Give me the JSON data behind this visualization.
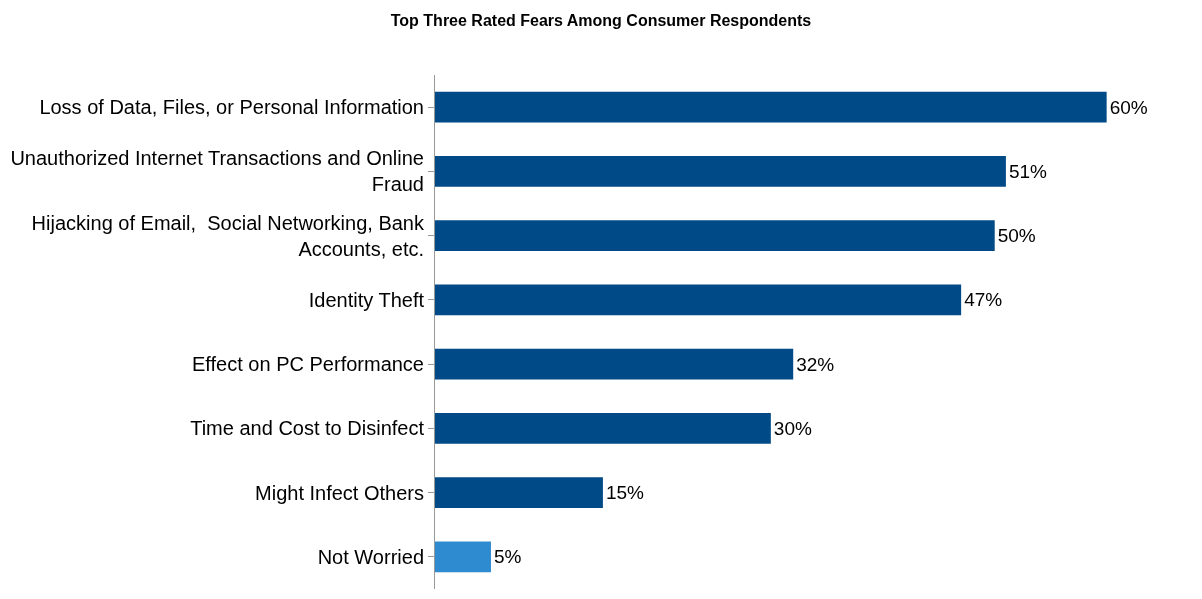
{
  "chart_data": {
    "type": "bar",
    "orientation": "horizontal",
    "title": "Top Three Rated Fears Among Consumer Respondents",
    "categories": [
      "Loss of Data, Files, or Personal Information",
      "Unauthorized Internet Transactions and Online Fraud",
      "Hijacking of Email,  Social Networking, Bank Accounts, etc.",
      "Identity Theft",
      "Effect on PC Performance",
      "Time and Cost to Disinfect",
      "Might Infect Others",
      "Not Worried"
    ],
    "values": [
      60,
      51,
      50,
      47,
      32,
      30,
      15,
      5
    ],
    "colors": [
      "#004a87",
      "#004a87",
      "#004a87",
      "#004a87",
      "#004a87",
      "#004a87",
      "#004a87",
      "#2e8bcf"
    ],
    "value_labels": [
      "60%",
      "51%",
      "50%",
      "47%",
      "32%",
      "30%",
      "15%",
      "5%"
    ],
    "tick_labels": "y"
  }
}
